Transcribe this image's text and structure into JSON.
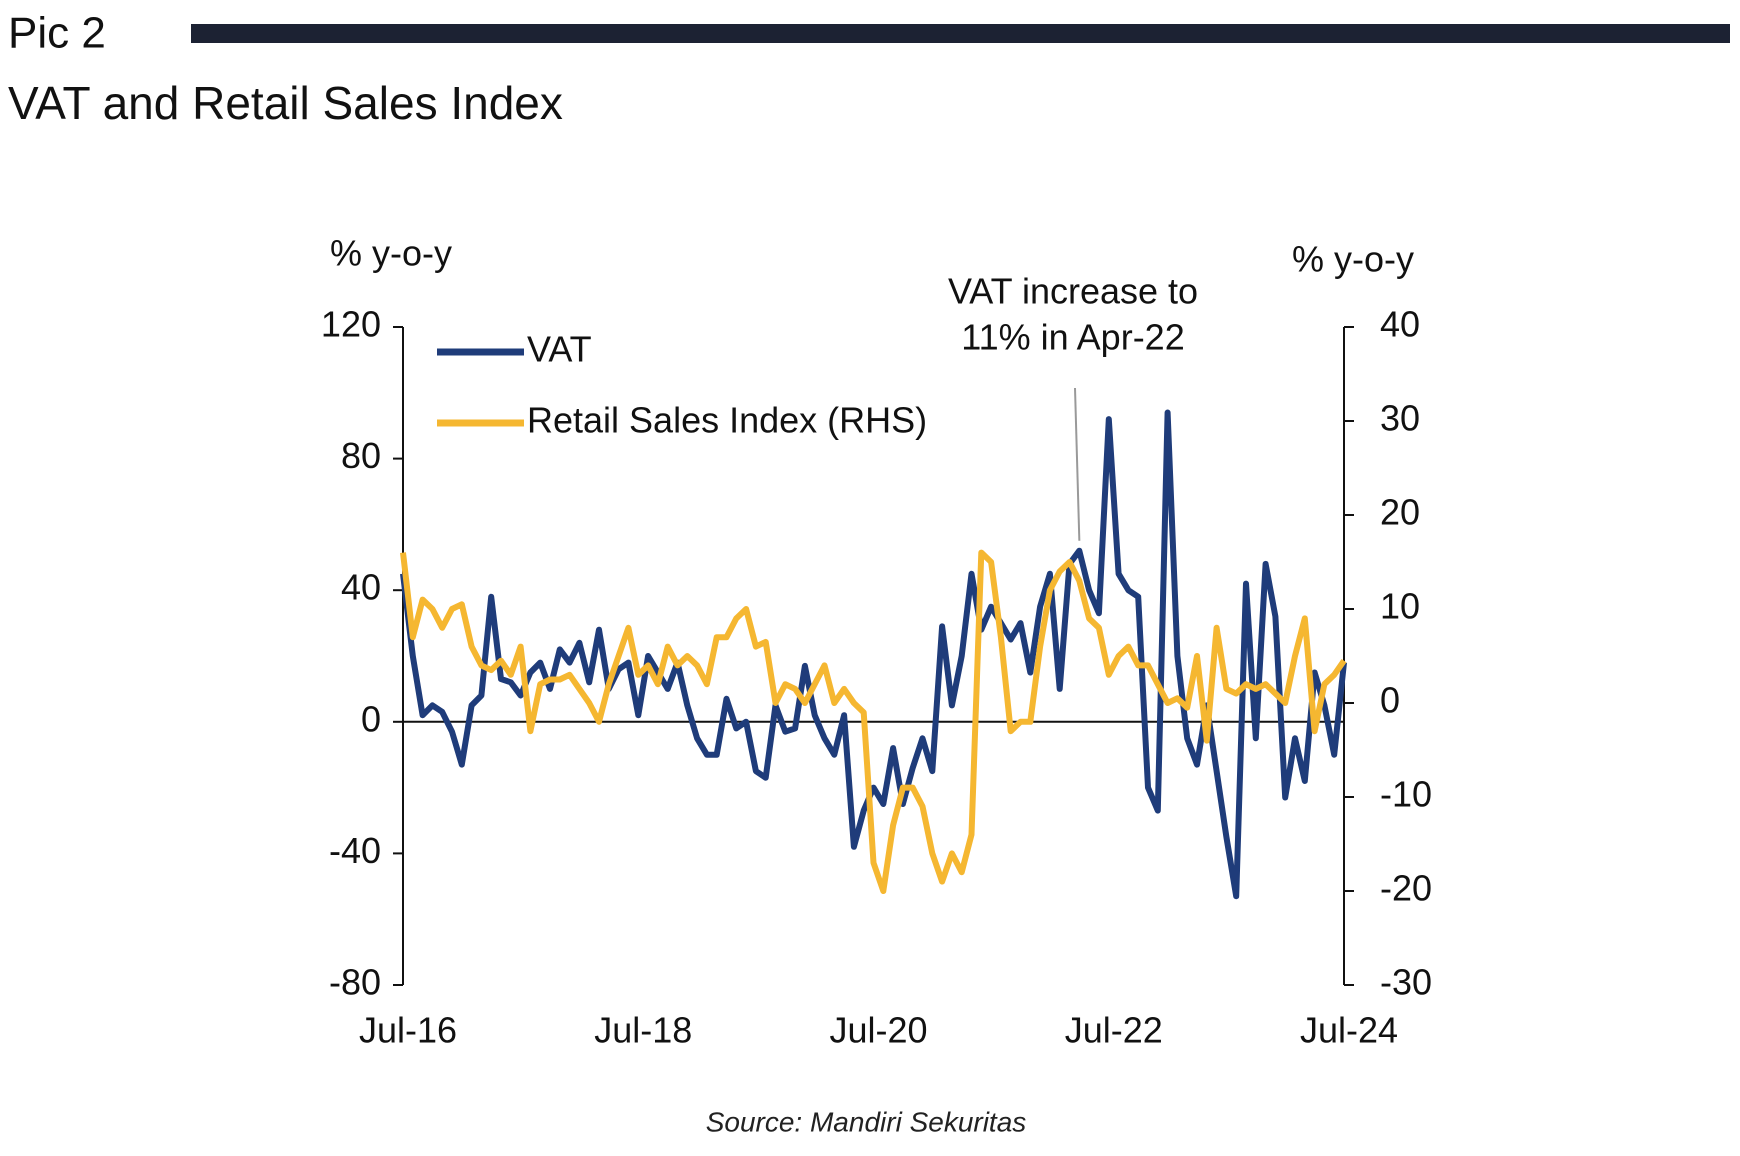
{
  "header": {
    "label": "Pic 2",
    "title": "VAT and Retail Sales Index"
  },
  "chart_data": {
    "type": "line",
    "y_label": "% y-o-y",
    "y2_label": "% y-o-y",
    "annotation": [
      "VAT increase to",
      "11% in Apr-22"
    ],
    "categories": [
      "Jul-16",
      null,
      null,
      null,
      null,
      null,
      null,
      null,
      null,
      null,
      null,
      null,
      null,
      null,
      null,
      null,
      null,
      null,
      null,
      null,
      null,
      null,
      null,
      null,
      "Jul-18",
      null,
      null,
      null,
      null,
      null,
      null,
      null,
      null,
      null,
      null,
      null,
      null,
      null,
      null,
      null,
      null,
      null,
      null,
      null,
      null,
      null,
      null,
      null,
      "Jul-20",
      null,
      null,
      null,
      null,
      null,
      null,
      null,
      null,
      null,
      null,
      null,
      null,
      null,
      null,
      null,
      null,
      null,
      null,
      null,
      null,
      null,
      null,
      null,
      "Jul-22",
      null,
      null,
      null,
      null,
      null,
      null,
      null,
      null,
      null,
      null,
      null,
      null,
      null,
      null,
      null,
      null,
      null,
      null,
      null,
      null,
      null,
      null,
      null,
      "Jul-24"
    ],
    "series": [
      {
        "name": "VAT",
        "color": "#1f3c7a",
        "axis": "y",
        "values": [
          45,
          20,
          2,
          5,
          3,
          -3,
          -13,
          5,
          8,
          38,
          13,
          12,
          8,
          15,
          18,
          10,
          22,
          18,
          24,
          12,
          28,
          10,
          16,
          18,
          2,
          20,
          15,
          10,
          18,
          5,
          -5,
          -10,
          -10,
          7,
          -2,
          0,
          -15,
          -17,
          5,
          -3,
          -2,
          17,
          2,
          -5,
          -10,
          2,
          -38,
          -27,
          -20,
          -25,
          -8,
          -25,
          -14,
          -5,
          -15,
          29,
          5,
          20,
          45,
          28,
          35,
          30,
          25,
          30,
          15,
          35,
          45,
          10,
          48,
          52,
          40,
          33,
          92,
          45,
          40,
          38,
          -20,
          -27,
          94,
          20,
          -5,
          -13,
          5,
          -15,
          -35,
          -53,
          42,
          -5,
          48,
          32,
          -23,
          -5,
          -18,
          15,
          5,
          -10,
          18
        ]
      },
      {
        "name": "Retail Sales Index (RHS)",
        "color": "#f5b731",
        "axis": "y2",
        "values": [
          16,
          7,
          11,
          10,
          8,
          10,
          10.5,
          6,
          4,
          3.5,
          4.5,
          3,
          6,
          -3,
          2,
          2.5,
          2.5,
          3,
          1.5,
          0,
          -2,
          2,
          5,
          8,
          3,
          4,
          2,
          6,
          4,
          5,
          4,
          2,
          7,
          7,
          9,
          10,
          6,
          6.5,
          0,
          2,
          1.5,
          0,
          2,
          4,
          0,
          1.5,
          0,
          -1,
          -17,
          -20,
          -13,
          -9,
          -9,
          -11,
          -16,
          -19,
          -16,
          -18,
          -14,
          16,
          15,
          7,
          -3,
          -2,
          -2,
          6,
          12,
          14,
          15,
          13,
          9,
          8,
          3,
          5,
          6,
          4,
          4,
          2,
          0,
          0.5,
          -0.5,
          5,
          -4,
          8,
          1.5,
          1,
          2,
          1.5,
          2,
          1,
          0,
          5,
          9,
          -3,
          2,
          3,
          4.5
        ]
      }
    ],
    "annotation_index": 69,
    "ylim": [
      -80,
      120
    ],
    "yticks": [
      -80,
      -40,
      0,
      40,
      80,
      120
    ],
    "y2lim": [
      -30,
      40
    ],
    "y2ticks": [
      -30,
      -20,
      -10,
      0,
      10,
      20,
      30,
      40
    ],
    "legend": "top-left"
  },
  "source": "Source: Mandiri Sekuritas"
}
